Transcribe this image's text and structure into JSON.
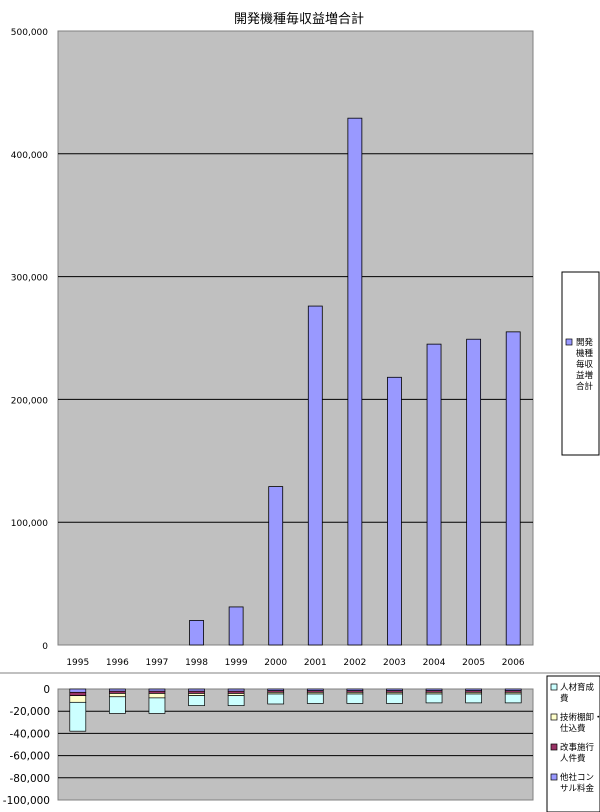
{
  "chart_data": [
    {
      "type": "bar",
      "title": "開発機種毎収益増合計",
      "categories": [
        "1995",
        "1996",
        "1997",
        "1998",
        "1999",
        "2000",
        "2001",
        "2002",
        "2003",
        "2004",
        "2005",
        "2006"
      ],
      "series": [
        {
          "name": "開発機種毎収益増合計",
          "color": "#9999ff",
          "values": [
            0,
            0,
            0,
            20000,
            31000,
            129000,
            276000,
            429000,
            218000,
            245000,
            249000,
            255000
          ]
        }
      ],
      "y_ticks": [
        "0",
        "100,000",
        "200,000",
        "300,000",
        "400,000",
        "500,000"
      ],
      "ylim": [
        0,
        500000
      ],
      "grid": true,
      "legend": {
        "position": "right",
        "lines": [
          "開発",
          "機種",
          "毎収",
          "益増",
          "合計"
        ]
      },
      "colors": {
        "plot_background": "#c0c0c0",
        "bar": "#9999ff"
      }
    },
    {
      "type": "bar",
      "stacked": true,
      "categories": [
        "1995",
        "1996",
        "1997",
        "1998",
        "1999",
        "2000",
        "2001",
        "2002",
        "2003",
        "2004",
        "2005",
        "2006"
      ],
      "series": [
        {
          "name": "他社コンサル料金",
          "color": "#9999ff",
          "values": [
            -3000,
            -2000,
            -2000,
            -2000,
            -2000,
            -1500,
            -1500,
            -1500,
            -1500,
            -1500,
            -1500,
            -1500
          ]
        },
        {
          "name": "改事施行人件費",
          "color": "#993366",
          "values": [
            -3000,
            -2000,
            -2000,
            -2000,
            -2000,
            -1500,
            -1500,
            -1500,
            -1500,
            -1500,
            -1500,
            -1500
          ]
        },
        {
          "name": "技術棚卸仕込費",
          "color": "#ffffcc",
          "values": [
            -6000,
            -3000,
            -4000,
            -2000,
            -2000,
            -1500,
            -1500,
            -1500,
            -1500,
            -1500,
            -1500,
            -1500
          ]
        },
        {
          "name": "人材育成費",
          "color": "#ccffff",
          "values": [
            -26000,
            -15000,
            -14000,
            -9000,
            -9000,
            -9000,
            -8500,
            -8500,
            -8500,
            -8000,
            -8000,
            -8000
          ]
        }
      ],
      "y_ticks": [
        "0",
        "-20,000",
        "-40,000",
        "-60,000",
        "-80,000",
        "-100,000"
      ],
      "ylim": [
        -100000,
        0
      ],
      "grid": true,
      "legend": {
        "position": "right",
        "entries": [
          {
            "lines": [
              "人材育成",
              "費"
            ],
            "color": "#ccffff"
          },
          {
            "lines": [
              "技術棚卸・",
              "仕込費"
            ],
            "color": "#ffffcc"
          },
          {
            "lines": [
              "改事施行",
              "人件費"
            ],
            "color": "#993366"
          },
          {
            "lines": [
              "他社コン",
              "サル料金"
            ],
            "color": "#9999ff"
          }
        ]
      },
      "colors": {
        "plot_background": "#c0c0c0"
      }
    }
  ]
}
